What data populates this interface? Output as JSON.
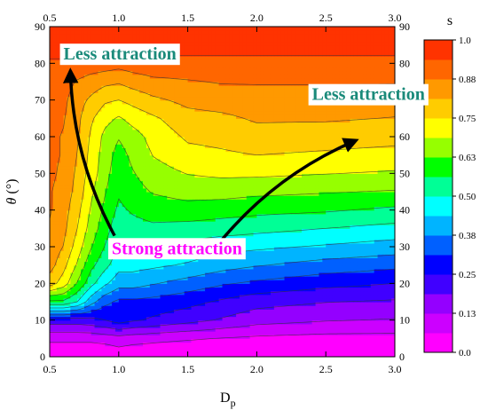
{
  "chart_data": {
    "type": "heatmap",
    "title": "",
    "xlabel_main": "D",
    "xlabel_sub": "p",
    "ylabel_symbol": "θ",
    "ylabel_unit": "(°)",
    "xlim": [
      0.5,
      3.0
    ],
    "ylim": [
      0,
      90
    ],
    "x_ticks": [
      "0.5",
      "1.0",
      "1.5",
      "2.0",
      "2.5",
      "3.0"
    ],
    "y_ticks": [
      "0",
      "10",
      "20",
      "30",
      "40",
      "50",
      "60",
      "70",
      "80",
      "90"
    ],
    "colorbar": {
      "label": "s",
      "range": [
        0.0,
        1.0
      ],
      "tick_labels": [
        "0.0",
        "0.13",
        "0.25",
        "0.38",
        "0.50",
        "0.63",
        "0.75",
        "0.88",
        "1.0"
      ],
      "levels": [
        0.0,
        0.0625,
        0.125,
        0.1875,
        0.25,
        0.3125,
        0.375,
        0.4375,
        0.5,
        0.5625,
        0.625,
        0.6875,
        0.75,
        0.8125,
        0.875,
        0.9375,
        1.0
      ],
      "colors": [
        "#ff00ff",
        "#cc00ff",
        "#9400ff",
        "#4000ff",
        "#0000ff",
        "#0060ff",
        "#00b4ff",
        "#00ffff",
        "#00ff96",
        "#00ff00",
        "#96ff00",
        "#ffff00",
        "#ffcc00",
        "#ff9900",
        "#ff6600",
        "#ff3300"
      ]
    },
    "grid": {
      "x": [
        0.5,
        0.6,
        0.7,
        0.8,
        0.9,
        1.0,
        1.1,
        1.25,
        1.5,
        1.75,
        2.0,
        2.5,
        3.0
      ],
      "y": [
        0,
        5,
        10,
        15,
        20,
        25,
        30,
        35,
        40,
        45,
        50,
        55,
        60,
        65,
        70,
        75,
        80,
        85,
        90
      ],
      "z": [
        [
          0.0,
          0.0,
          0.0,
          0.0,
          0.0,
          0.02,
          0.01,
          0.01,
          0.0,
          0.0,
          0.0,
          0.0,
          0.0
        ],
        [
          0.08,
          0.08,
          0.08,
          0.08,
          0.09,
          0.1,
          0.09,
          0.08,
          0.07,
          0.06,
          0.05,
          0.04,
          0.04
        ],
        [
          0.22,
          0.22,
          0.22,
          0.23,
          0.25,
          0.28,
          0.26,
          0.24,
          0.21,
          0.18,
          0.15,
          0.13,
          0.12
        ],
        [
          0.55,
          0.55,
          0.5,
          0.4,
          0.33,
          0.3,
          0.3,
          0.29,
          0.27,
          0.24,
          0.21,
          0.19,
          0.18
        ],
        [
          0.78,
          0.72,
          0.62,
          0.52,
          0.45,
          0.4,
          0.4,
          0.38,
          0.35,
          0.32,
          0.3,
          0.27,
          0.25
        ],
        [
          0.84,
          0.77,
          0.68,
          0.58,
          0.52,
          0.46,
          0.46,
          0.45,
          0.43,
          0.4,
          0.38,
          0.35,
          0.33
        ],
        [
          0.86,
          0.81,
          0.72,
          0.63,
          0.56,
          0.5,
          0.5,
          0.5,
          0.48,
          0.46,
          0.45,
          0.43,
          0.41
        ],
        [
          0.87,
          0.83,
          0.75,
          0.66,
          0.59,
          0.52,
          0.54,
          0.55,
          0.54,
          0.53,
          0.52,
          0.5,
          0.48
        ],
        [
          0.88,
          0.84,
          0.77,
          0.68,
          0.61,
          0.55,
          0.57,
          0.59,
          0.6,
          0.59,
          0.58,
          0.57,
          0.55
        ],
        [
          0.88,
          0.85,
          0.79,
          0.7,
          0.63,
          0.57,
          0.6,
          0.63,
          0.65,
          0.65,
          0.64,
          0.63,
          0.62
        ],
        [
          0.89,
          0.86,
          0.8,
          0.72,
          0.65,
          0.58,
          0.62,
          0.66,
          0.69,
          0.7,
          0.7,
          0.69,
          0.68
        ],
        [
          0.89,
          0.87,
          0.81,
          0.73,
          0.66,
          0.6,
          0.64,
          0.69,
          0.73,
          0.74,
          0.75,
          0.74,
          0.73
        ],
        [
          0.89,
          0.87,
          0.82,
          0.74,
          0.67,
          0.63,
          0.66,
          0.71,
          0.76,
          0.77,
          0.79,
          0.78,
          0.77
        ],
        [
          0.9,
          0.88,
          0.83,
          0.76,
          0.71,
          0.68,
          0.71,
          0.74,
          0.79,
          0.8,
          0.82,
          0.82,
          0.81
        ],
        [
          0.9,
          0.89,
          0.84,
          0.8,
          0.76,
          0.75,
          0.77,
          0.8,
          0.83,
          0.84,
          0.85,
          0.85,
          0.84
        ],
        [
          0.91,
          0.9,
          0.87,
          0.85,
          0.83,
          0.82,
          0.84,
          0.86,
          0.87,
          0.88,
          0.88,
          0.88,
          0.88
        ],
        [
          0.93,
          0.93,
          0.92,
          0.91,
          0.91,
          0.9,
          0.91,
          0.92,
          0.92,
          0.92,
          0.92,
          0.92,
          0.92
        ],
        [
          0.96,
          0.96,
          0.96,
          0.96,
          0.96,
          0.96,
          0.96,
          0.96,
          0.96,
          0.96,
          0.96,
          0.96,
          0.96
        ],
        [
          0.99,
          0.99,
          0.99,
          0.99,
          0.99,
          0.99,
          0.99,
          0.99,
          0.99,
          0.99,
          0.99,
          0.99,
          0.99
        ]
      ]
    },
    "annotations": [
      {
        "text": "Less attraction",
        "x": 0.6,
        "y": 81,
        "color": "#1a8a7a",
        "boxed": true
      },
      {
        "text": "Less attraction",
        "x": 2.4,
        "y": 70,
        "color": "#1a8a7a",
        "boxed": true
      },
      {
        "text": "Strong attraction",
        "x": 0.95,
        "y": 28,
        "color": "#ff00ff",
        "boxed": true
      }
    ],
    "arrows": [
      {
        "from": [
          0.97,
          33
        ],
        "to": [
          0.65,
          78
        ]
      },
      {
        "from": [
          1.75,
          32
        ],
        "to": [
          2.72,
          59
        ]
      }
    ]
  }
}
